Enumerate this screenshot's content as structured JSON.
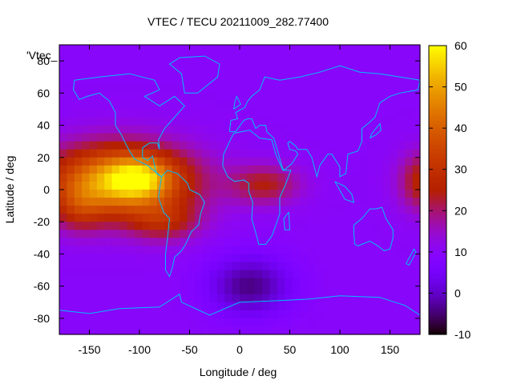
{
  "chart_data": {
    "type": "heatmap",
    "title": "VTEC / TECU 20211009_282.77400",
    "xlabel": "Longitude / deg",
    "ylabel": "Latitude / deg",
    "xlim": [
      -180,
      180
    ],
    "ylim": [
      -90,
      90
    ],
    "xticks": [
      -150,
      -100,
      -50,
      0,
      50,
      100,
      150
    ],
    "yticks": [
      -80,
      -60,
      -40,
      -20,
      0,
      20,
      40,
      60,
      80
    ],
    "colorbar": {
      "range": [
        -10,
        60
      ],
      "ticks": [
        -10,
        0,
        10,
        20,
        30,
        40,
        50,
        60
      ]
    },
    "legend_entry": "'Vtec_",
    "background_level": 10,
    "features": [
      {
        "lon": -120,
        "lat": 5,
        "value": 42,
        "spread_lon": 70,
        "spread_lat": 22
      },
      {
        "lon": -100,
        "lat": 7,
        "value": 17,
        "spread_lon": 30,
        "spread_lat": 12
      },
      {
        "lon": -75,
        "lat": -20,
        "value": 13,
        "spread_lon": 35,
        "spread_lat": 12
      },
      {
        "lon": -160,
        "lat": -12,
        "value": 10,
        "spread_lon": 25,
        "spread_lat": 15
      },
      {
        "lon": 25,
        "lat": 3,
        "value": 14,
        "spread_lon": 35,
        "spread_lat": 12
      },
      {
        "lon": 185,
        "lat": 5,
        "value": 18,
        "spread_lon": 25,
        "spread_lat": 18
      },
      {
        "lon": 10,
        "lat": -60,
        "value": -14,
        "spread_lon": 40,
        "spread_lat": 18
      }
    ],
    "coastline_color": "#00bfff"
  }
}
